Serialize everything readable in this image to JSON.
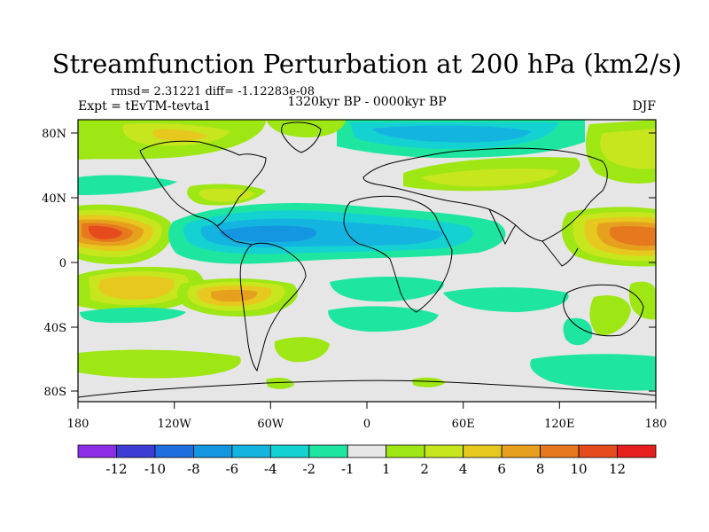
{
  "title": "Streamfunction Perturbation at 200 hPa (km2/s)",
  "stats_line": "rmsd= 2.31221 diff= -1.12283e-08",
  "left_label": "Expt = tEvTM-tevta1",
  "center_label": "1320kyr BP - 0000kyr BP",
  "right_label": "DJF",
  "lat_ticks": [
    "80N",
    "40N",
    "0",
    "40S",
    "80S"
  ],
  "lon_ticks": [
    "180",
    "120W",
    "60W",
    "0",
    "60E",
    "120E",
    "180"
  ],
  "colorbar": {
    "labels": [
      "-12",
      "-10",
      "-8",
      "-6",
      "-4",
      "-2",
      "-1",
      "1",
      "2",
      "4",
      "6",
      "8",
      "10",
      "12"
    ],
    "colors": [
      "#8c2ee6",
      "#3d3dd6",
      "#1e6ee0",
      "#1496e0",
      "#14b4e0",
      "#14d2d2",
      "#1ee6a0",
      "#e6e6e6",
      "#9ee614",
      "#c8e61e",
      "#e6c81e",
      "#e6a01e",
      "#e6781e",
      "#e64b1e",
      "#e61e1e"
    ]
  }
}
